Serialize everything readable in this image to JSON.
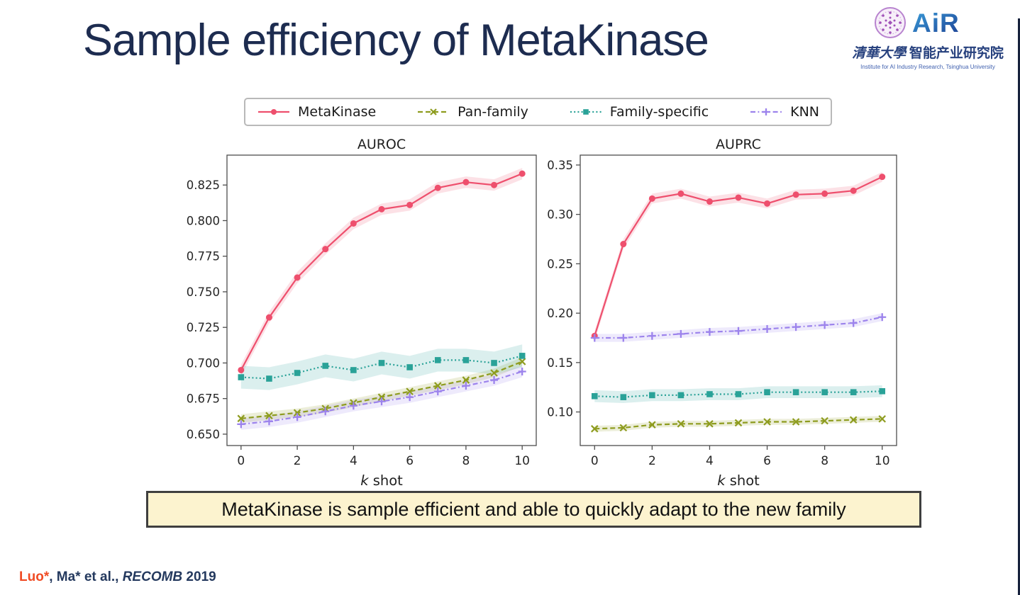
{
  "slide": {
    "title": "Sample efficiency of MetaKinase",
    "caption": "MetaKinase is sample efficient and able to quickly adapt to the new family",
    "citation": {
      "author": "Luo*",
      "middle": ", Ma* et al., ",
      "venue": "RECOMB",
      "year": " 2019"
    }
  },
  "logo": {
    "wordmark": "AiR",
    "cn_calligraphy": "清華大學",
    "cn_name": "智能产业研究院",
    "en_caption": "Institute for AI Industry Research,  Tsinghua University"
  },
  "colors": {
    "title": "#1d2c50",
    "caption_bg": "#fcf3cf",
    "caption_border": "#3f3f3f",
    "citation_author": "#f04b24",
    "citation_text": "#24395e",
    "metakinase": "#ee4f6d",
    "pan_family": "#8e9c1f",
    "family_specific": "#2aa298",
    "knn": "#9c83ec"
  },
  "legend": {
    "items": [
      {
        "label": "MetaKinase",
        "color": "#ee4f6d",
        "dash": "solid",
        "marker": "circle"
      },
      {
        "label": "Pan-family",
        "color": "#8e9c1f",
        "dash": "dashed",
        "marker": "x"
      },
      {
        "label": "Family-specific",
        "color": "#2aa298",
        "dash": "dotted",
        "marker": "square"
      },
      {
        "label": "KNN",
        "color": "#9c83ec",
        "dash": "dashdot",
        "marker": "plus"
      }
    ]
  },
  "chart_data": [
    {
      "type": "line",
      "title": "AUROC",
      "xlabel_italic": "k",
      "xlabel_rest": " shot",
      "x": [
        0,
        1,
        2,
        3,
        4,
        5,
        6,
        7,
        8,
        9,
        10
      ],
      "xlim": [
        -0.5,
        10.5
      ],
      "xticks": [
        0,
        2,
        4,
        6,
        8,
        10
      ],
      "xtick_labels": [
        "0",
        "2",
        "4",
        "6",
        "8",
        "10"
      ],
      "ylim": [
        0.642,
        0.846
      ],
      "yticks": [
        0.65,
        0.675,
        0.7,
        0.725,
        0.75,
        0.775,
        0.8,
        0.825
      ],
      "ytick_labels": [
        "0.650",
        "0.675",
        "0.700",
        "0.725",
        "0.750",
        "0.775",
        "0.800",
        "0.825"
      ],
      "grid": false,
      "legend_position": "above",
      "series": [
        {
          "name": "MetaKinase",
          "color": "#ee4f6d",
          "dash": "solid",
          "marker": "circle",
          "band": 0.004,
          "values": [
            0.695,
            0.732,
            0.76,
            0.78,
            0.798,
            0.808,
            0.811,
            0.823,
            0.827,
            0.825,
            0.833
          ]
        },
        {
          "name": "Pan-family",
          "color": "#8e9c1f",
          "dash": "dashed",
          "marker": "x",
          "band": 0.003,
          "values": [
            0.661,
            0.663,
            0.665,
            0.668,
            0.672,
            0.676,
            0.68,
            0.684,
            0.688,
            0.693,
            0.701
          ]
        },
        {
          "name": "Family-specific",
          "color": "#2aa298",
          "dash": "dotted",
          "marker": "square",
          "band": 0.008,
          "values": [
            0.69,
            0.689,
            0.693,
            0.698,
            0.695,
            0.7,
            0.697,
            0.702,
            0.702,
            0.7,
            0.705
          ]
        },
        {
          "name": "KNN",
          "color": "#9c83ec",
          "dash": "dashdot",
          "marker": "plus",
          "band": 0.004,
          "values": [
            0.657,
            0.659,
            0.662,
            0.666,
            0.67,
            0.673,
            0.676,
            0.68,
            0.684,
            0.688,
            0.694
          ]
        }
      ]
    },
    {
      "type": "line",
      "title": "AUPRC",
      "xlabel_italic": "k",
      "xlabel_rest": " shot",
      "x": [
        0,
        1,
        2,
        3,
        4,
        5,
        6,
        7,
        8,
        9,
        10
      ],
      "xlim": [
        -0.5,
        10.5
      ],
      "xticks": [
        0,
        2,
        4,
        6,
        8,
        10
      ],
      "xtick_labels": [
        "0",
        "2",
        "4",
        "6",
        "8",
        "10"
      ],
      "ylim": [
        0.066,
        0.36
      ],
      "yticks": [
        0.1,
        0.15,
        0.2,
        0.25,
        0.3,
        0.35
      ],
      "ytick_labels": [
        "0.10",
        "0.15",
        "0.20",
        "0.25",
        "0.30",
        "0.35"
      ],
      "grid": false,
      "legend_position": "above",
      "series": [
        {
          "name": "MetaKinase",
          "color": "#ee4f6d",
          "dash": "solid",
          "marker": "circle",
          "band": 0.005,
          "values": [
            0.177,
            0.27,
            0.316,
            0.321,
            0.313,
            0.317,
            0.311,
            0.32,
            0.321,
            0.324,
            0.338
          ]
        },
        {
          "name": "Pan-family",
          "color": "#8e9c1f",
          "dash": "dashed",
          "marker": "x",
          "band": 0.003,
          "values": [
            0.083,
            0.084,
            0.087,
            0.088,
            0.088,
            0.089,
            0.09,
            0.09,
            0.091,
            0.092,
            0.093
          ]
        },
        {
          "name": "Family-specific",
          "color": "#2aa298",
          "dash": "dotted",
          "marker": "square",
          "band": 0.006,
          "values": [
            0.116,
            0.115,
            0.117,
            0.117,
            0.118,
            0.118,
            0.12,
            0.12,
            0.12,
            0.12,
            0.121
          ]
        },
        {
          "name": "KNN",
          "color": "#9c83ec",
          "dash": "dashdot",
          "marker": "plus",
          "band": 0.004,
          "values": [
            0.175,
            0.175,
            0.177,
            0.179,
            0.181,
            0.182,
            0.184,
            0.186,
            0.188,
            0.19,
            0.196
          ]
        }
      ]
    }
  ]
}
